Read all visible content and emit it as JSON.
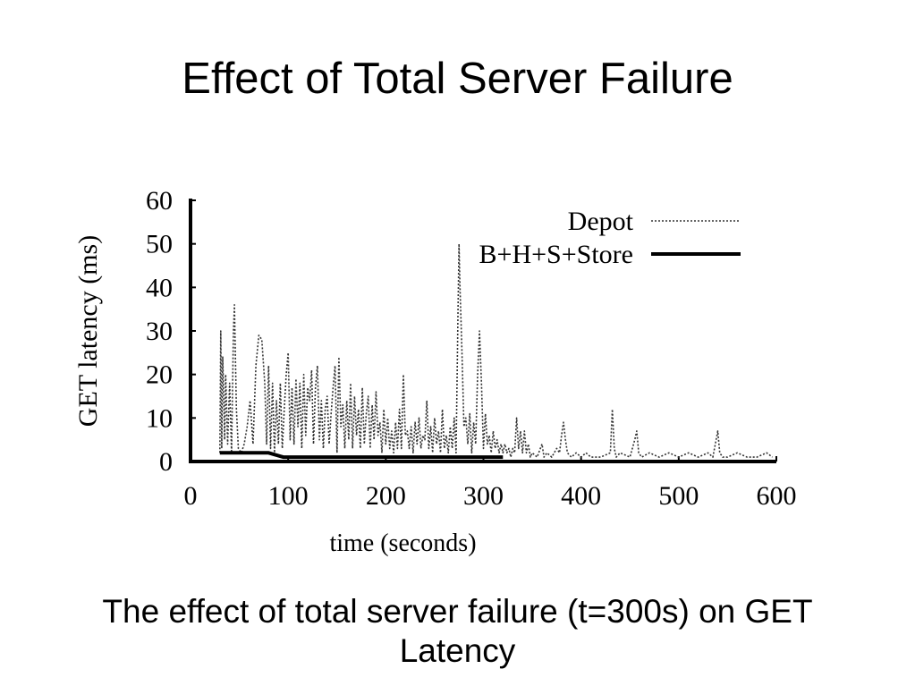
{
  "slide": {
    "title": "Effect of Total Server Failure",
    "caption": "The effect of total server failure (t=300s) on GET Latency"
  },
  "chart_data": {
    "type": "line",
    "xlabel": "time (seconds)",
    "ylabel": "GET latency (ms)",
    "xlim": [
      0,
      600
    ],
    "ylim": [
      0,
      60
    ],
    "xticks": [
      0,
      100,
      200,
      300,
      400,
      500,
      600
    ],
    "yticks": [
      0,
      10,
      20,
      30,
      40,
      50,
      60
    ],
    "legend_position": "top-right",
    "series": [
      {
        "name": "Depot",
        "style": "dotted",
        "color": "#333333",
        "points": [
          [
            30,
            2
          ],
          [
            31,
            30
          ],
          [
            32,
            3
          ],
          [
            33,
            24
          ],
          [
            35,
            5
          ],
          [
            36,
            20
          ],
          [
            38,
            4
          ],
          [
            40,
            18
          ],
          [
            42,
            2
          ],
          [
            44,
            30
          ],
          [
            45,
            36
          ],
          [
            47,
            12
          ],
          [
            49,
            3
          ],
          [
            52,
            2
          ],
          [
            55,
            4
          ],
          [
            58,
            8
          ],
          [
            61,
            14
          ],
          [
            64,
            4
          ],
          [
            67,
            22
          ],
          [
            70,
            29
          ],
          [
            73,
            28
          ],
          [
            76,
            18
          ],
          [
            78,
            4
          ],
          [
            80,
            22
          ],
          [
            82,
            3
          ],
          [
            84,
            18
          ],
          [
            86,
            2
          ],
          [
            88,
            14
          ],
          [
            90,
            4
          ],
          [
            92,
            18
          ],
          [
            94,
            3
          ],
          [
            96,
            12
          ],
          [
            98,
            20
          ],
          [
            100,
            25
          ],
          [
            102,
            5
          ],
          [
            104,
            17
          ],
          [
            106,
            4
          ],
          [
            108,
            19
          ],
          [
            110,
            8
          ],
          [
            112,
            18
          ],
          [
            114,
            3
          ],
          [
            116,
            20
          ],
          [
            118,
            6
          ],
          [
            120,
            17
          ],
          [
            122,
            14
          ],
          [
            124,
            21
          ],
          [
            126,
            4
          ],
          [
            128,
            17
          ],
          [
            130,
            22
          ],
          [
            132,
            5
          ],
          [
            134,
            14
          ],
          [
            136,
            3
          ],
          [
            138,
            12
          ],
          [
            140,
            15
          ],
          [
            142,
            4
          ],
          [
            144,
            11
          ],
          [
            146,
            17
          ],
          [
            148,
            22
          ],
          [
            150,
            2
          ],
          [
            152,
            24
          ],
          [
            154,
            8
          ],
          [
            156,
            13
          ],
          [
            158,
            3
          ],
          [
            160,
            14
          ],
          [
            162,
            5
          ],
          [
            164,
            18
          ],
          [
            166,
            3
          ],
          [
            168,
            15
          ],
          [
            170,
            6
          ],
          [
            172,
            12
          ],
          [
            174,
            3
          ],
          [
            176,
            17
          ],
          [
            178,
            4
          ],
          [
            180,
            11
          ],
          [
            182,
            15
          ],
          [
            184,
            3
          ],
          [
            186,
            13
          ],
          [
            188,
            5
          ],
          [
            190,
            16
          ],
          [
            192,
            6
          ],
          [
            194,
            9
          ],
          [
            196,
            2
          ],
          [
            198,
            12
          ],
          [
            200,
            4
          ],
          [
            202,
            10
          ],
          [
            204,
            3
          ],
          [
            206,
            7
          ],
          [
            208,
            2
          ],
          [
            210,
            9
          ],
          [
            212,
            3
          ],
          [
            214,
            12
          ],
          [
            216,
            3
          ],
          [
            218,
            20
          ],
          [
            220,
            6
          ],
          [
            222,
            7
          ],
          [
            224,
            3
          ],
          [
            226,
            8
          ],
          [
            228,
            2
          ],
          [
            230,
            9
          ],
          [
            232,
            4
          ],
          [
            234,
            10
          ],
          [
            236,
            3
          ],
          [
            238,
            6
          ],
          [
            240,
            5
          ],
          [
            242,
            14
          ],
          [
            244,
            3
          ],
          [
            246,
            8
          ],
          [
            248,
            2
          ],
          [
            250,
            10
          ],
          [
            252,
            4
          ],
          [
            254,
            7
          ],
          [
            256,
            2
          ],
          [
            258,
            12
          ],
          [
            260,
            3
          ],
          [
            262,
            6
          ],
          [
            264,
            2
          ],
          [
            266,
            8
          ],
          [
            268,
            3
          ],
          [
            270,
            10
          ],
          [
            272,
            2
          ],
          [
            274,
            35
          ],
          [
            275,
            50
          ],
          [
            276,
            40
          ],
          [
            278,
            25
          ],
          [
            280,
            8
          ],
          [
            282,
            10
          ],
          [
            284,
            4
          ],
          [
            286,
            11
          ],
          [
            288,
            2
          ],
          [
            290,
            9
          ],
          [
            292,
            4
          ],
          [
            294,
            20
          ],
          [
            296,
            30
          ],
          [
            298,
            18
          ],
          [
            300,
            3
          ],
          [
            302,
            11
          ],
          [
            304,
            4
          ],
          [
            306,
            6
          ],
          [
            308,
            2
          ],
          [
            310,
            7
          ],
          [
            312,
            3
          ],
          [
            314,
            5
          ],
          [
            316,
            2
          ],
          [
            318,
            4
          ],
          [
            320,
            2
          ],
          [
            322,
            4
          ],
          [
            324,
            2
          ],
          [
            326,
            3
          ],
          [
            328,
            1
          ],
          [
            330,
            3
          ],
          [
            332,
            2
          ],
          [
            334,
            10
          ],
          [
            336,
            3
          ],
          [
            338,
            7
          ],
          [
            340,
            2
          ],
          [
            342,
            7
          ],
          [
            344,
            2
          ],
          [
            346,
            4
          ],
          [
            348,
            1
          ],
          [
            350,
            2
          ],
          [
            355,
            1
          ],
          [
            360,
            4
          ],
          [
            362,
            1
          ],
          [
            365,
            2
          ],
          [
            370,
            1
          ],
          [
            375,
            3
          ],
          [
            378,
            2
          ],
          [
            380,
            6
          ],
          [
            382,
            9
          ],
          [
            384,
            5
          ],
          [
            386,
            2
          ],
          [
            390,
            1
          ],
          [
            395,
            2
          ],
          [
            400,
            1
          ],
          [
            405,
            2
          ],
          [
            410,
            1
          ],
          [
            420,
            1
          ],
          [
            430,
            2
          ],
          [
            432,
            12
          ],
          [
            434,
            3
          ],
          [
            436,
            1
          ],
          [
            440,
            2
          ],
          [
            450,
            1
          ],
          [
            455,
            5
          ],
          [
            457,
            7
          ],
          [
            459,
            2
          ],
          [
            462,
            1
          ],
          [
            470,
            2
          ],
          [
            480,
            1
          ],
          [
            490,
            2
          ],
          [
            500,
            1
          ],
          [
            510,
            2
          ],
          [
            520,
            1
          ],
          [
            530,
            2
          ],
          [
            535,
            1
          ],
          [
            540,
            7
          ],
          [
            542,
            2
          ],
          [
            545,
            1
          ],
          [
            550,
            1
          ],
          [
            560,
            2
          ],
          [
            570,
            1
          ],
          [
            580,
            1
          ],
          [
            590,
            2
          ],
          [
            596,
            1
          ]
        ]
      },
      {
        "name": "B+H+S+Store",
        "style": "solid",
        "color": "#000000",
        "points": [
          [
            30,
            2
          ],
          [
            60,
            2
          ],
          [
            80,
            2
          ],
          [
            95,
            1
          ],
          [
            300,
            1
          ],
          [
            320,
            1
          ]
        ]
      }
    ]
  }
}
